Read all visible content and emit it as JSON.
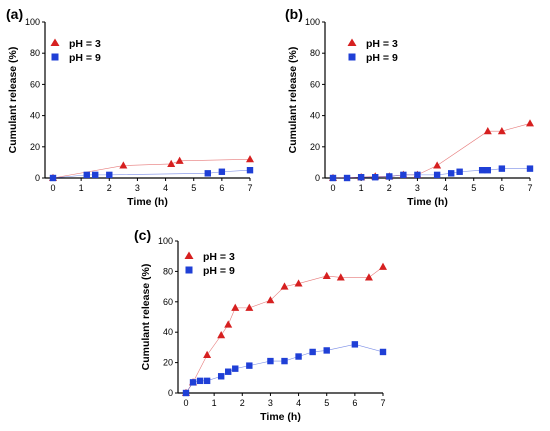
{
  "chart_data": [
    {
      "type": "line",
      "panel_label": "(a)",
      "xlabel": "Time (h)",
      "ylabel": "Cumulant release (%)",
      "xlim": [
        0,
        7
      ],
      "ylim": [
        0,
        100
      ],
      "xticks": [
        0,
        1,
        2,
        3,
        4,
        5,
        6,
        7
      ],
      "yticks": [
        0,
        20,
        40,
        60,
        80,
        100
      ],
      "legend_position": "top-left",
      "series": [
        {
          "name": "pH = 3",
          "color": "#d62020",
          "marker": "triangle",
          "x": [
            0,
            2.5,
            4.2,
            4.5,
            7
          ],
          "y": [
            0,
            8,
            9,
            11,
            12
          ]
        },
        {
          "name": "pH = 9",
          "color": "#1f3fd6",
          "marker": "square",
          "x": [
            0,
            1.2,
            1.5,
            2,
            5.5,
            6,
            7
          ],
          "y": [
            0,
            2,
            2,
            2,
            3,
            4,
            5
          ]
        }
      ]
    },
    {
      "type": "line",
      "panel_label": "(b)",
      "xlabel": "Time (h)",
      "ylabel": "Cumulant release (%)",
      "xlim": [
        0,
        7
      ],
      "ylim": [
        0,
        100
      ],
      "xticks": [
        0,
        1,
        2,
        3,
        4,
        5,
        6,
        7
      ],
      "yticks": [
        0,
        20,
        40,
        60,
        80,
        100
      ],
      "legend_position": "top-right",
      "series": [
        {
          "name": "pH = 3",
          "color": "#d62020",
          "marker": "triangle",
          "x": [
            0,
            1,
            1.5,
            2,
            2.5,
            3,
            3.7,
            5.5,
            6,
            7
          ],
          "y": [
            0,
            0.5,
            1,
            1,
            2,
            2,
            8,
            30,
            30,
            35
          ]
        },
        {
          "name": "pH = 9",
          "color": "#1f3fd6",
          "marker": "square",
          "x": [
            0,
            0.5,
            1,
            1.5,
            2,
            2.5,
            3,
            3.7,
            4.2,
            4.5,
            5.3,
            5.5,
            6,
            7
          ],
          "y": [
            0,
            0,
            0.5,
            0.5,
            1,
            2,
            2,
            2,
            3,
            4,
            5,
            5,
            6,
            6
          ]
        }
      ]
    },
    {
      "type": "line",
      "panel_label": "(c)",
      "xlabel": "Time (h)",
      "ylabel": "Cumulant release (%)",
      "xlim": [
        0,
        7
      ],
      "ylim": [
        0,
        100
      ],
      "xticks": [
        0,
        1,
        2,
        3,
        4,
        5,
        6,
        7
      ],
      "yticks": [
        0,
        20,
        40,
        60,
        80,
        100
      ],
      "legend_position": "top-left",
      "series": [
        {
          "name": "pH = 3",
          "color": "#d62020",
          "marker": "triangle",
          "x": [
            0,
            0.25,
            0.75,
            1.25,
            1.5,
            1.75,
            2.25,
            3,
            3.5,
            4,
            5,
            5.5,
            6.5,
            7
          ],
          "y": [
            0,
            7,
            25,
            38,
            45,
            56,
            56,
            61,
            70,
            72,
            77,
            76,
            76,
            83
          ]
        },
        {
          "name": "pH = 9",
          "color": "#1f3fd6",
          "marker": "square",
          "x": [
            0,
            0.25,
            0.5,
            0.75,
            1.25,
            1.5,
            1.75,
            2.25,
            3,
            3.5,
            4,
            4.5,
            5,
            6,
            7
          ],
          "y": [
            0,
            7,
            8,
            8,
            11,
            14,
            16,
            18,
            21,
            21,
            24,
            27,
            28,
            32,
            27
          ]
        }
      ]
    }
  ]
}
